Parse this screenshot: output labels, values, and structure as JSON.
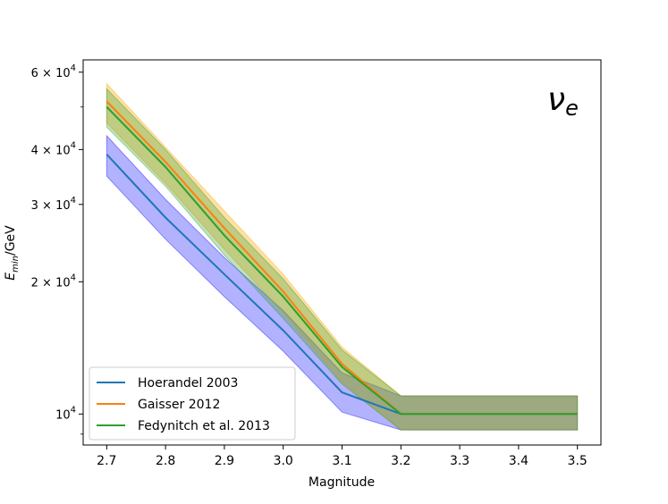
{
  "chart_data": {
    "type": "line",
    "title": "",
    "annotation": "ν_e",
    "xlabel": "Magnitude",
    "ylabel": "E_min/GeV",
    "xlim": [
      2.66,
      3.54
    ],
    "ylim": [
      8500,
      64000
    ],
    "yscale": "log",
    "x": [
      2.7,
      2.8,
      2.9,
      3.0,
      3.1,
      3.2,
      3.3,
      3.4,
      3.5
    ],
    "x_ticks": [
      "2.7",
      "2.8",
      "2.9",
      "3.0",
      "3.1",
      "3.2",
      "3.3",
      "3.4",
      "3.5"
    ],
    "y_ticks": [
      {
        "value": 10000,
        "mantissa": "",
        "exponent": "4",
        "label": "10^4"
      },
      {
        "value": 20000,
        "mantissa": "2",
        "exponent": "4",
        "label": "2×10^4"
      },
      {
        "value": 30000,
        "mantissa": "3",
        "exponent": "4",
        "label": "3×10^4"
      },
      {
        "value": 40000,
        "mantissa": "4",
        "exponent": "4",
        "label": "4×10^4"
      },
      {
        "value": 60000,
        "mantissa": "6",
        "exponent": "4",
        "label": "6×10^4"
      }
    ],
    "legend_position": "lower-left",
    "series": [
      {
        "name": "Hoerandel 2003",
        "color": "#1f77b4",
        "band_color": "#0000ff",
        "values": [
          39000,
          28000,
          20800,
          15500,
          11200,
          10000,
          10000,
          10000,
          10000
        ],
        "lower": [
          34800,
          25000,
          18500,
          13900,
          10100,
          9200,
          9200,
          9200,
          9200
        ],
        "upper": [
          43000,
          30800,
          22700,
          17200,
          12400,
          11000,
          11000,
          11000,
          11000
        ]
      },
      {
        "name": "Gaisser 2012",
        "color": "#ff7f0e",
        "band_color": "#ffa500",
        "values": [
          51500,
          37500,
          26500,
          19000,
          13000,
          10000,
          10000,
          10000,
          10000
        ],
        "lower": [
          46000,
          33500,
          23700,
          17000,
          11800,
          9200,
          9200,
          9200,
          9200
        ],
        "upper": [
          56500,
          40500,
          29000,
          20800,
          14200,
          11000,
          11000,
          11000,
          11000
        ]
      },
      {
        "name": "Fedynitch et al. 2013",
        "color": "#2ca02c",
        "band_color": "#2ca02c",
        "values": [
          50000,
          36500,
          25500,
          18500,
          12800,
          10000,
          10000,
          10000,
          10000
        ],
        "lower": [
          45000,
          33000,
          23000,
          16500,
          11700,
          9200,
          9200,
          9200,
          9200
        ],
        "upper": [
          55000,
          40000,
          28000,
          20300,
          14000,
          11000,
          11000,
          11000,
          11000
        ]
      }
    ]
  }
}
